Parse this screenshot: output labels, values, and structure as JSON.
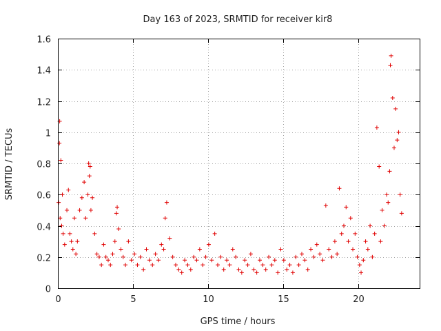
{
  "chart_data": {
    "type": "scatter",
    "title": "Day 163 of 2023, SRMTID for receiver kir8",
    "xlabel": "GPS time / hours",
    "ylabel": "SRMTID / TECUs",
    "xlim": [
      0,
      24.1
    ],
    "ylim": [
      0,
      1.6
    ],
    "xticks": [
      0,
      5,
      10,
      15,
      20
    ],
    "xtick_labels": [
      "0",
      "5",
      "10",
      "15",
      "20"
    ],
    "yticks": [
      0,
      0.2,
      0.4,
      0.6,
      0.8,
      1.0,
      1.2,
      1.4,
      1.6
    ],
    "ytick_labels": [
      "0",
      "0.2",
      "0.4",
      "0.6",
      "0.8",
      "1",
      "1.2",
      "1.4",
      "1.6"
    ],
    "grid": true,
    "marker": "+",
    "color": "#e00000",
    "series": [
      {
        "name": "SRMTID",
        "x": [
          0.05,
          0.1,
          0.12,
          0.15,
          0.2,
          0.25,
          0.3,
          0.35,
          0.45,
          0.6,
          0.7,
          0.8,
          0.9,
          1.0,
          1.1,
          1.2,
          1.3,
          1.45,
          1.6,
          1.75,
          1.85,
          2.0,
          2.05,
          2.1,
          2.15,
          2.2,
          2.3,
          2.45,
          2.6,
          2.75,
          2.9,
          3.05,
          3.2,
          3.35,
          3.5,
          3.65,
          3.8,
          3.9,
          3.95,
          4.05,
          4.2,
          4.35,
          4.5,
          4.7,
          4.9,
          5.1,
          5.3,
          5.5,
          5.7,
          5.9,
          6.1,
          6.3,
          6.5,
          6.7,
          6.9,
          7.05,
          7.15,
          7.25,
          7.45,
          7.65,
          7.85,
          8.05,
          8.25,
          8.45,
          8.65,
          8.85,
          9.05,
          9.25,
          9.45,
          9.65,
          9.85,
          10.05,
          10.25,
          10.45,
          10.65,
          10.85,
          11.05,
          11.25,
          11.45,
          11.65,
          11.85,
          12.05,
          12.25,
          12.45,
          12.65,
          12.85,
          13.05,
          13.25,
          13.45,
          13.65,
          13.85,
          14.05,
          14.25,
          14.45,
          14.65,
          14.85,
          15.05,
          15.25,
          15.45,
          15.65,
          15.85,
          16.05,
          16.25,
          16.45,
          16.65,
          16.85,
          17.05,
          17.25,
          17.45,
          17.65,
          17.85,
          18.05,
          18.25,
          18.45,
          18.6,
          18.75,
          18.9,
          19.05,
          19.2,
          19.35,
          19.5,
          19.65,
          19.8,
          19.95,
          20.1,
          20.2,
          20.35,
          20.5,
          20.65,
          20.8,
          20.95,
          21.1,
          21.25,
          21.4,
          21.5,
          21.6,
          21.75,
          21.9,
          22.0,
          22.1,
          22.15,
          22.2,
          22.3,
          22.4,
          22.5,
          22.6,
          22.7,
          22.8,
          22.9
        ],
        "y": [
          0.55,
          0.93,
          1.07,
          0.45,
          0.82,
          0.4,
          0.6,
          0.35,
          0.28,
          0.5,
          0.63,
          0.35,
          0.3,
          0.25,
          0.45,
          0.22,
          0.3,
          0.5,
          0.58,
          0.68,
          0.45,
          0.6,
          0.8,
          0.72,
          0.78,
          0.5,
          0.58,
          0.35,
          0.22,
          0.2,
          0.15,
          0.28,
          0.2,
          0.18,
          0.15,
          0.22,
          0.3,
          0.48,
          0.52,
          0.38,
          0.25,
          0.2,
          0.15,
          0.3,
          0.18,
          0.22,
          0.15,
          0.2,
          0.12,
          0.25,
          0.18,
          0.15,
          0.22,
          0.18,
          0.28,
          0.25,
          0.45,
          0.55,
          0.32,
          0.2,
          0.15,
          0.12,
          0.1,
          0.18,
          0.15,
          0.12,
          0.2,
          0.18,
          0.25,
          0.15,
          0.2,
          0.28,
          0.18,
          0.35,
          0.15,
          0.2,
          0.12,
          0.18,
          0.15,
          0.25,
          0.2,
          0.12,
          0.1,
          0.18,
          0.15,
          0.22,
          0.12,
          0.1,
          0.18,
          0.15,
          0.12,
          0.2,
          0.15,
          0.18,
          0.1,
          0.25,
          0.18,
          0.12,
          0.15,
          0.1,
          0.2,
          0.15,
          0.22,
          0.18,
          0.12,
          0.25,
          0.2,
          0.28,
          0.22,
          0.18,
          0.53,
          0.25,
          0.2,
          0.3,
          0.22,
          0.64,
          0.35,
          0.4,
          0.52,
          0.3,
          0.45,
          0.25,
          0.35,
          0.2,
          0.15,
          0.1,
          0.18,
          0.3,
          0.25,
          0.4,
          0.2,
          0.35,
          1.03,
          0.78,
          0.3,
          0.5,
          0.4,
          0.6,
          0.55,
          0.75,
          1.43,
          1.49,
          1.22,
          0.9,
          1.15,
          0.95,
          1.0,
          0.6,
          0.48
        ]
      }
    ]
  }
}
